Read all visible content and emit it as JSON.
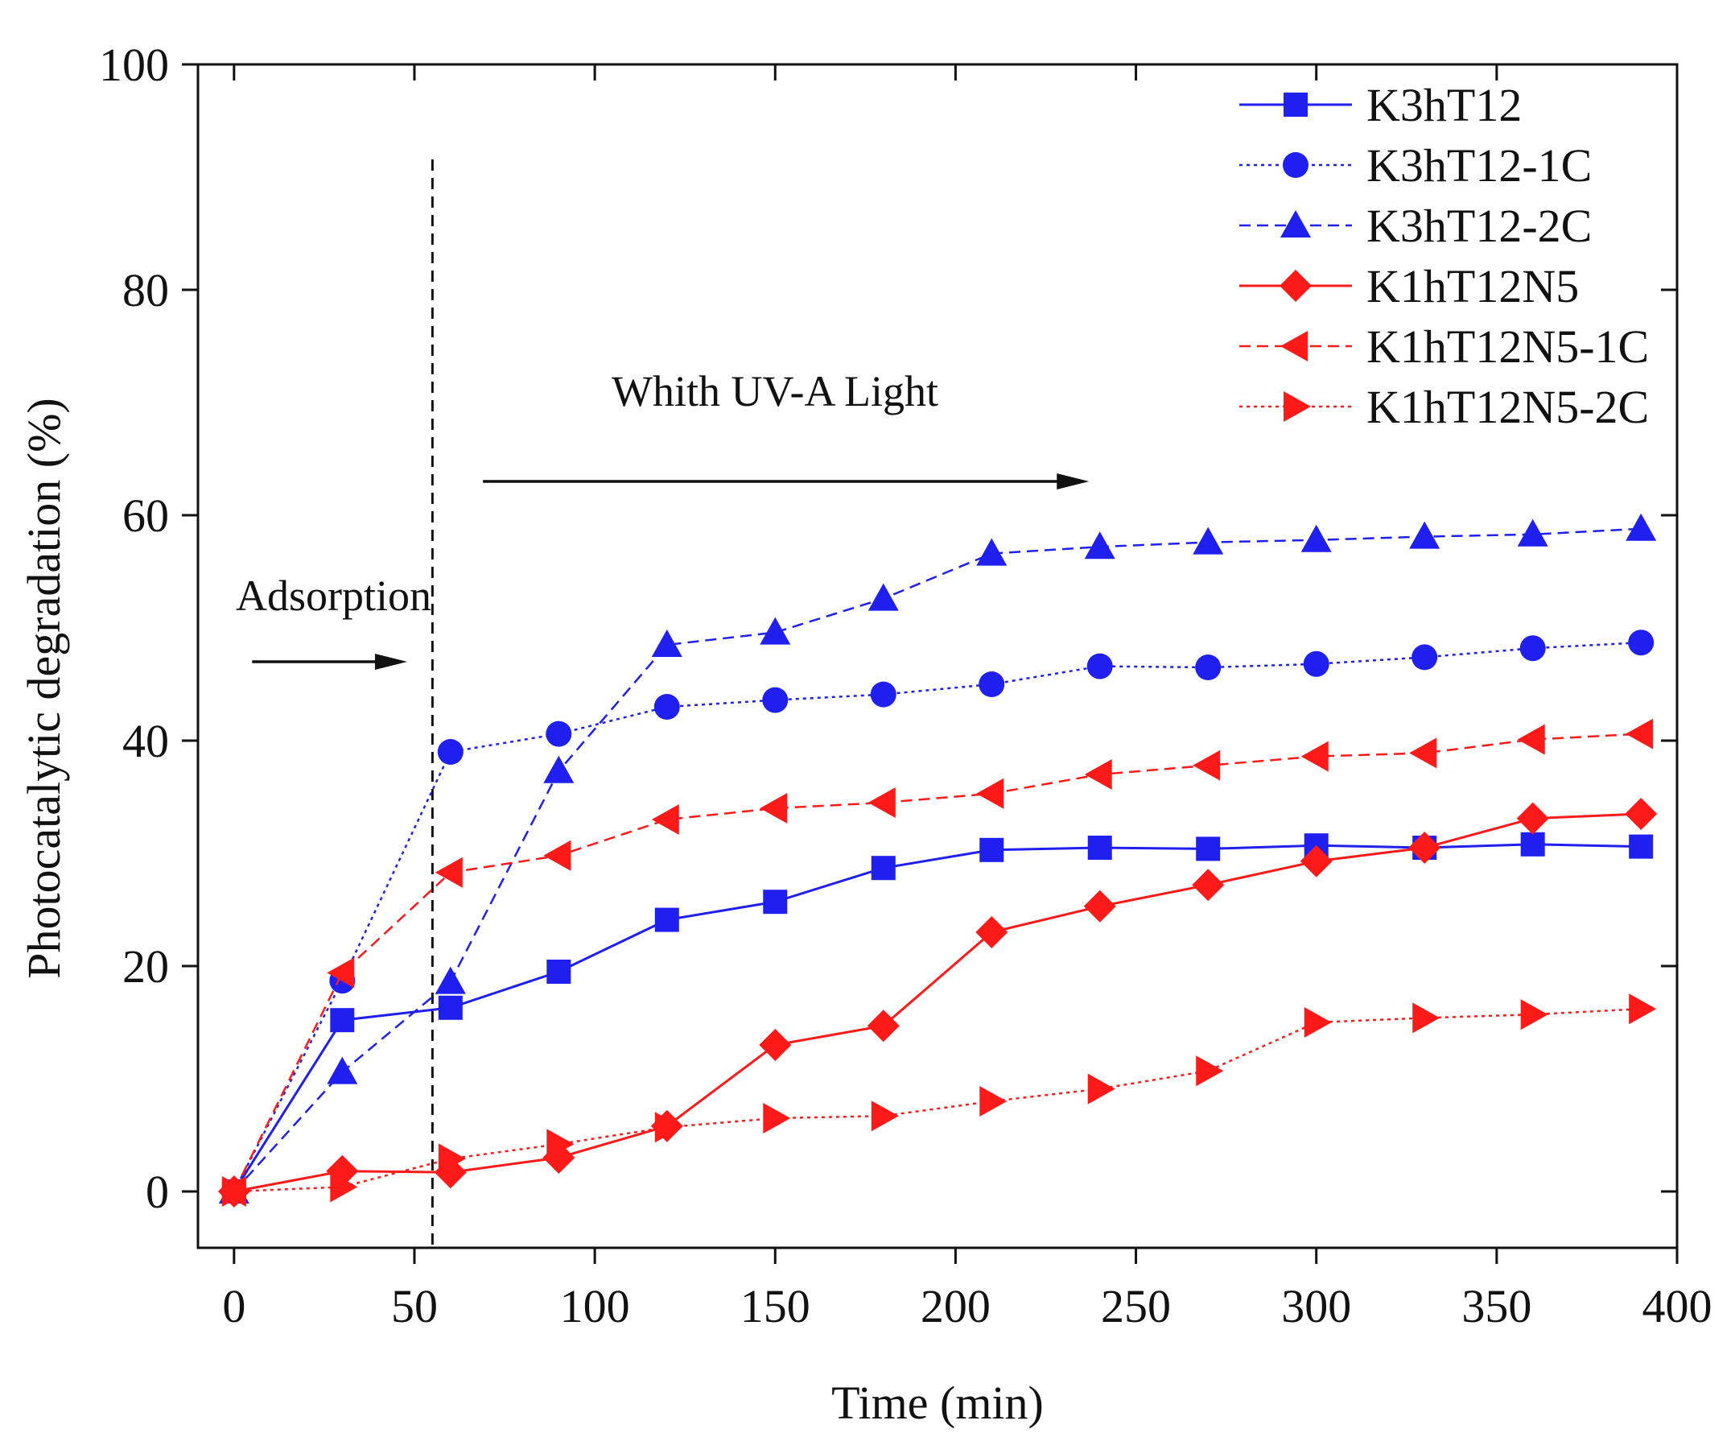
{
  "chart_data": {
    "type": "line",
    "title": "",
    "xlabel": "Time (min)",
    "ylabel": "Photocatalytic degradation (%)",
    "xlim": [
      -10,
      400
    ],
    "ylim": [
      -5,
      100
    ],
    "xticks": [
      0,
      50,
      100,
      150,
      200,
      250,
      300,
      350,
      400
    ],
    "yticks": [
      0,
      20,
      40,
      60,
      80,
      100
    ],
    "x": [
      0,
      30,
      60,
      90,
      120,
      150,
      180,
      210,
      240,
      270,
      300,
      330,
      360,
      390
    ],
    "series": [
      {
        "name": "K3hT12",
        "color": "#1f1fef",
        "marker": "square",
        "dash": "solid",
        "values": [
          0,
          15.2,
          16.3,
          19.5,
          24.1,
          25.7,
          28.7,
          30.3,
          30.5,
          30.4,
          30.7,
          30.5,
          30.8,
          30.6
        ]
      },
      {
        "name": "K3hT12-1C",
        "color": "#1f1fef",
        "marker": "circle",
        "dash": "dotted",
        "values": [
          0,
          18.7,
          39.0,
          40.6,
          43.0,
          43.6,
          44.1,
          45.0,
          46.6,
          46.5,
          46.8,
          47.4,
          48.2,
          48.7
        ]
      },
      {
        "name": "K3hT12-2C",
        "color": "#1f1fef",
        "marker": "triangle-up",
        "dash": "dashed",
        "values": [
          0,
          10.6,
          18.6,
          37.3,
          48.5,
          49.6,
          52.6,
          56.6,
          57.2,
          57.6,
          57.8,
          58.1,
          58.3,
          58.8
        ]
      },
      {
        "name": "K1hT12N5",
        "color": "#ff1a1a",
        "marker": "diamond",
        "dash": "solid",
        "values": [
          0,
          1.8,
          1.7,
          3.0,
          5.8,
          13.0,
          14.7,
          23.0,
          25.3,
          27.2,
          29.3,
          30.5,
          33.1,
          33.5
        ]
      },
      {
        "name": "K1hT12N5-1C",
        "color": "#ff1a1a",
        "marker": "triangle-left",
        "dash": "dashed",
        "values": [
          0,
          19.4,
          28.3,
          29.8,
          33.0,
          34.0,
          34.5,
          35.3,
          37.0,
          37.8,
          38.6,
          38.9,
          40.1,
          40.6
        ]
      },
      {
        "name": "K1hT12N5-2C",
        "color": "#ff1a1a",
        "marker": "triangle-right",
        "dash": "dotted",
        "values": [
          0,
          0.4,
          2.9,
          4.2,
          5.7,
          6.5,
          6.7,
          8.0,
          9.1,
          10.7,
          15.0,
          15.4,
          15.7,
          16.2
        ]
      }
    ],
    "legend_position": "top-right",
    "annotations": {
      "adsorption": {
        "text": "Adsorption",
        "arrow_from_x": 5,
        "arrow_to_x": 48,
        "y": 47
      },
      "uv": {
        "text": "Whith UV-A  Light",
        "arrow_from_x": 69,
        "arrow_to_x": 237,
        "y": 63
      },
      "divider_x": 55
    }
  }
}
